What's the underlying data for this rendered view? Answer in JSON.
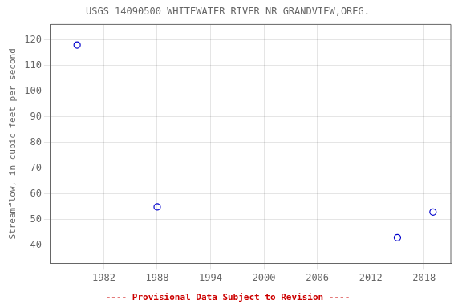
{
  "chart_data": {
    "type": "scatter",
    "title": "USGS 14090500 WHITEWATER RIVER NR GRANDVIEW,OREG.",
    "ylabel": "Streamflow, in cubic feet per second",
    "x": [
      1979,
      1988,
      2015,
      2019
    ],
    "values": [
      118,
      55,
      43,
      53
    ],
    "color": "#0000cc",
    "marker": "circle",
    "xlim": [
      1976,
      2021
    ],
    "ylim": [
      33,
      126
    ],
    "xticks": [
      1982,
      1988,
      1994,
      2000,
      2006,
      2012,
      2018
    ],
    "yticks": [
      40,
      50,
      60,
      70,
      80,
      90,
      100,
      110,
      120
    ],
    "grid": true,
    "annotations": [
      {
        "text": "---- Provisional Data Subject to Revision ----",
        "color": "#cc0000"
      }
    ]
  }
}
